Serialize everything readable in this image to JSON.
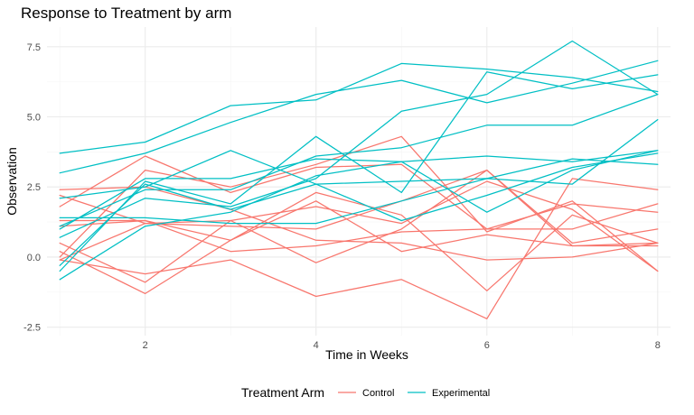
{
  "chart_data": {
    "type": "line",
    "title": "Response to Treatment by arm",
    "xlabel": "Time in Weeks",
    "ylabel": "Observation",
    "x": [
      1,
      2,
      3,
      4,
      5,
      6,
      7,
      8
    ],
    "xlim": [
      0.85,
      8.15
    ],
    "ylim": [
      -2.8,
      8.2
    ],
    "x_ticks": [
      2,
      4,
      6,
      8
    ],
    "x_tick_labels": [
      "2",
      "4",
      "6",
      "8"
    ],
    "y_ticks": [
      -2.5,
      0,
      2.5,
      5,
      7.5
    ],
    "y_tick_labels": [
      "-2.5",
      "0.0",
      "2.5",
      "5.0",
      "7.5"
    ],
    "grid": true,
    "legend": {
      "title": "Treatment Arm",
      "placement": "bottom",
      "entries": [
        {
          "label": "Control",
          "color": "#F8766D"
        },
        {
          "label": "Experimental",
          "color": "#00BFC4"
        }
      ]
    },
    "series": [
      {
        "group": "Control",
        "color": "#F8766D",
        "values": [
          0.2,
          -1.3,
          0.6,
          2.0,
          0.2,
          0.8,
          0.4,
          0.5
        ]
      },
      {
        "group": "Control",
        "color": "#F8766D",
        "values": [
          1.1,
          1.3,
          0.2,
          0.4,
          0.9,
          1.0,
          1.9,
          1.6
        ]
      },
      {
        "group": "Control",
        "color": "#F8766D",
        "values": [
          -0.1,
          1.2,
          1.3,
          1.8,
          1.2,
          2.7,
          1.7,
          -0.5
        ]
      },
      {
        "group": "Control",
        "color": "#F8766D",
        "values": [
          1.8,
          3.6,
          2.3,
          3.2,
          3.3,
          1.0,
          1.0,
          1.9
        ]
      },
      {
        "group": "Control",
        "color": "#F8766D",
        "values": [
          2.4,
          2.5,
          1.7,
          0.6,
          0.5,
          -0.1,
          0.0,
          0.5
        ]
      },
      {
        "group": "Control",
        "color": "#F8766D",
        "values": [
          0.5,
          -0.9,
          1.3,
          -0.2,
          1.0,
          3.1,
          0.4,
          0.4
        ]
      },
      {
        "group": "Control",
        "color": "#F8766D",
        "values": [
          2.2,
          1.2,
          1.1,
          1.0,
          2.0,
          3.1,
          0.5,
          1.0
        ]
      },
      {
        "group": "Control",
        "color": "#F8766D",
        "values": [
          0.0,
          3.1,
          2.5,
          3.3,
          4.3,
          0.9,
          2.0,
          -0.5
        ]
      },
      {
        "group": "Control",
        "color": "#F8766D",
        "values": [
          -0.1,
          -0.6,
          -0.1,
          -1.4,
          -0.8,
          -2.2,
          2.8,
          2.4
        ]
      },
      {
        "group": "Control",
        "color": "#F8766D",
        "values": [
          1.3,
          1.3,
          0.6,
          2.3,
          1.5,
          -1.2,
          1.5,
          0.5
        ]
      },
      {
        "group": "Experimental",
        "color": "#00BFC4",
        "values": [
          3.7,
          4.1,
          5.4,
          5.6,
          6.9,
          6.7,
          6.4,
          5.9
        ]
      },
      {
        "group": "Experimental",
        "color": "#00BFC4",
        "values": [
          3.0,
          3.7,
          4.8,
          5.8,
          6.3,
          5.5,
          6.2,
          7.0
        ]
      },
      {
        "group": "Experimental",
        "color": "#00BFC4",
        "values": [
          1.1,
          2.4,
          2.4,
          3.6,
          3.9,
          4.7,
          4.7,
          5.8
        ]
      },
      {
        "group": "Experimental",
        "color": "#00BFC4",
        "values": [
          2.1,
          2.5,
          3.8,
          2.6,
          1.3,
          2.2,
          3.2,
          3.7
        ]
      },
      {
        "group": "Experimental",
        "color": "#00BFC4",
        "values": [
          1.4,
          1.4,
          1.2,
          1.2,
          2.0,
          2.8,
          3.5,
          3.3
        ]
      },
      {
        "group": "Experimental",
        "color": "#00BFC4",
        "values": [
          -0.5,
          2.7,
          1.9,
          4.3,
          2.3,
          6.6,
          6.0,
          6.5
        ]
      },
      {
        "group": "Experimental",
        "color": "#00BFC4",
        "values": [
          1.0,
          2.8,
          2.8,
          3.5,
          3.4,
          3.6,
          3.4,
          3.8
        ]
      },
      {
        "group": "Experimental",
        "color": "#00BFC4",
        "values": [
          -0.3,
          2.6,
          1.7,
          2.6,
          2.7,
          2.8,
          2.6,
          4.9
        ]
      },
      {
        "group": "Experimental",
        "color": "#00BFC4",
        "values": [
          0.7,
          2.1,
          1.8,
          2.8,
          5.2,
          5.8,
          7.7,
          5.8
        ]
      },
      {
        "group": "Experimental",
        "color": "#00BFC4",
        "values": [
          -0.8,
          1.1,
          1.6,
          2.9,
          3.4,
          1.6,
          3.1,
          3.8
        ]
      }
    ]
  }
}
